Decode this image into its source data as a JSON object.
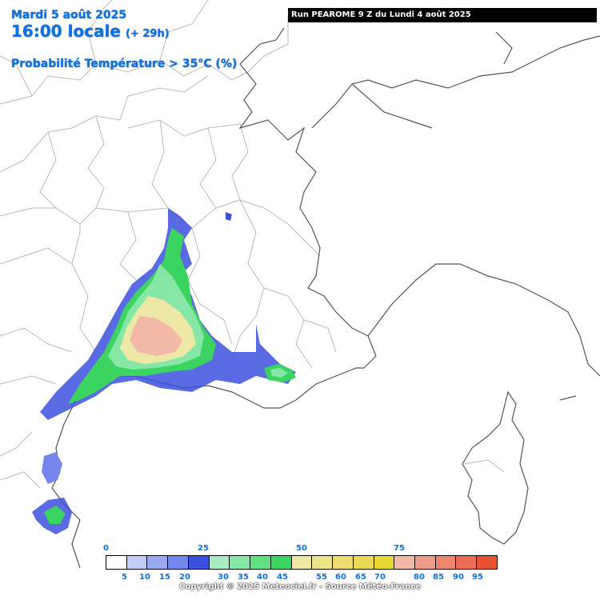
{
  "header": {
    "date": "Mardi 5 août 2025",
    "time": "16:00 locale",
    "lead": "(+ 29h)",
    "product": "Probabilité Température > 35°C (%)"
  },
  "run": "Run PEAROME 9 Z du Lundi 4 août 2025",
  "legend": {
    "major_labels": [
      "0",
      "25",
      "50",
      "75"
    ],
    "minor_labels": [
      "5",
      "10",
      "15",
      "20",
      "30",
      "35",
      "40",
      "45",
      "55",
      "60",
      "65",
      "70",
      "80",
      "85",
      "90",
      "95"
    ],
    "colors": [
      "#ffffff",
      "#c3cdf7",
      "#9aa8f0",
      "#7587ec",
      "#3c50dd",
      "#a6ecc2",
      "#86e6a6",
      "#62e084",
      "#3cd460",
      "#ede8a6",
      "#eee489",
      "#ecde70",
      "#ead858",
      "#e8d833",
      "#f2b8a8",
      "#f09c8c",
      "#ee8670",
      "#ec6c56",
      "#e85233"
    ]
  },
  "copyright": "Copyright © 2025 Meteociel.fr - Source Météo-France"
}
